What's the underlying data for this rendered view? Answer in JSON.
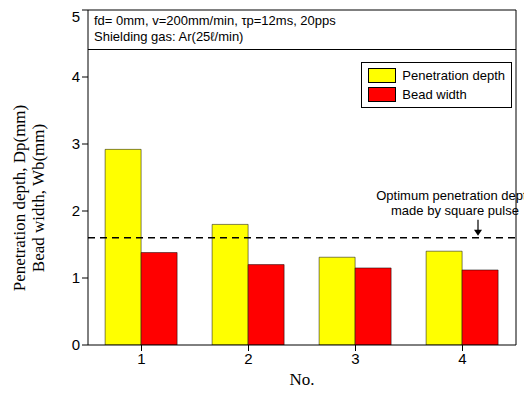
{
  "chart_data": {
    "type": "bar",
    "categories": [
      "1",
      "2",
      "3",
      "4"
    ],
    "series": [
      {
        "name": "Penetration depth",
        "color": "#ffff00",
        "values": [
          2.92,
          1.8,
          1.31,
          1.4
        ]
      },
      {
        "name": "Bead width",
        "color": "#ff0000",
        "values": [
          1.38,
          1.2,
          1.15,
          1.12
        ]
      }
    ],
    "ylim": [
      0,
      5
    ],
    "yticks": [
      0,
      1,
      2,
      3,
      4,
      5
    ],
    "x_label": "No.",
    "y_label": [
      "Penetration depth, Dp(mm)",
      "Bead width, Wb(mm)"
    ],
    "annotations": [
      "fd= 0mm, v=200mm/min, τp=12ms, 20pps",
      "Shielding gas: Ar(25ℓ/min)"
    ],
    "reference_line": {
      "value": 1.6,
      "label": [
        "Optimum penetration depth",
        "made by square pulse"
      ]
    },
    "legend": "top-right",
    "grid": false
  }
}
